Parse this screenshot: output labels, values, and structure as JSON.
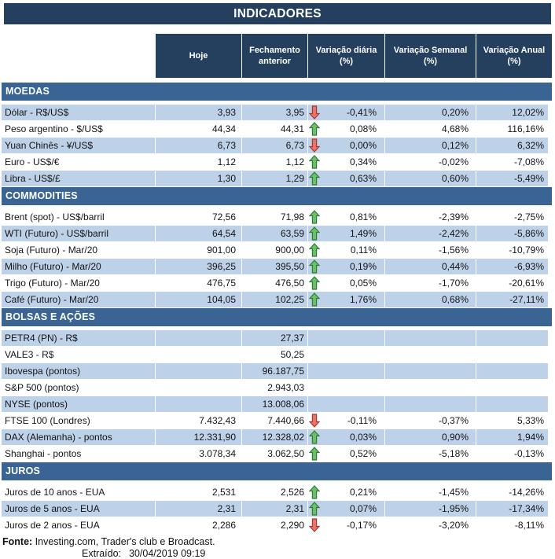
{
  "title": "INDICADORES",
  "columns": [
    "Hoje",
    "Fechamento anterior",
    "Variação diária (%)",
    "Variação Semanal (%)",
    "Variação Anual (%)"
  ],
  "colors": {
    "header_dark": "#24405E",
    "section_blue": "#3A6494",
    "row_shaded": "#BDD1E8",
    "arrow_up_fill": "#6CBE6C",
    "arrow_up_stroke": "#2F7D31",
    "arrow_down_fill": "#E8746B",
    "arrow_down_stroke": "#A83830"
  },
  "sections": [
    {
      "name": "MOEDAS",
      "rows": [
        {
          "label": "Dólar - R$/US$",
          "hoje": "3,93",
          "fechamento": "3,95",
          "arrow": "down",
          "var_diaria": "-0,41%",
          "var_semanal": "0,20%",
          "var_anual": "12,02%",
          "shaded": true
        },
        {
          "label": "Peso argentino - $/US$",
          "hoje": "44,34",
          "fechamento": "44,31",
          "arrow": "up",
          "var_diaria": "0,08%",
          "var_semanal": "4,68%",
          "var_anual": "116,16%",
          "shaded": false
        },
        {
          "label": "Yuan Chinês - ¥/US$",
          "hoje": "6,73",
          "fechamento": "6,73",
          "arrow": "down",
          "var_diaria": "0,00%",
          "var_semanal": "0,12%",
          "var_anual": "6,32%",
          "shaded": true
        },
        {
          "label": "Euro - US$/€",
          "hoje": "1,12",
          "fechamento": "1,12",
          "arrow": "up",
          "var_diaria": "0,34%",
          "var_semanal": "-0,02%",
          "var_anual": "-7,08%",
          "shaded": false
        },
        {
          "label": "Libra - US$/£",
          "hoje": "1,30",
          "fechamento": "1,29",
          "arrow": "up",
          "var_diaria": "0,63%",
          "var_semanal": "0,60%",
          "var_anual": "-5,49%",
          "shaded": true
        }
      ]
    },
    {
      "name": "COMMODITIES",
      "rows": [
        {
          "label": "Brent (spot) - US$/barril",
          "hoje": "72,56",
          "fechamento": "71,98",
          "arrow": "up",
          "var_diaria": "0,81%",
          "var_semanal": "-2,39%",
          "var_anual": "-2,75%",
          "shaded": false
        },
        {
          "label": "WTI (Futuro) - US$/barril",
          "hoje": "64,54",
          "fechamento": "63,59",
          "arrow": "up",
          "var_diaria": "1,49%",
          "var_semanal": "-2,42%",
          "var_anual": "-5,86%",
          "shaded": true
        },
        {
          "label": "Soja (Futuro) - Mar/20",
          "hoje": "901,00",
          "fechamento": "900,00",
          "arrow": "up",
          "var_diaria": "0,11%",
          "var_semanal": "-1,56%",
          "var_anual": "-10,79%",
          "shaded": false
        },
        {
          "label": "Milho (Futuro) - Mar/20",
          "hoje": "396,25",
          "fechamento": "395,50",
          "arrow": "up",
          "var_diaria": "0,19%",
          "var_semanal": "0,44%",
          "var_anual": "-6,93%",
          "shaded": true
        },
        {
          "label": "Trigo (Futuro) - Mar/20",
          "hoje": "476,75",
          "fechamento": "476,50",
          "arrow": "up",
          "var_diaria": "0,05%",
          "var_semanal": "-1,70%",
          "var_anual": "-20,61%",
          "shaded": false
        },
        {
          "label": "Café (Futuro) - Mar/20",
          "hoje": "104,05",
          "fechamento": "102,25",
          "arrow": "up",
          "var_diaria": "1,76%",
          "var_semanal": "0,68%",
          "var_anual": "-27,11%",
          "shaded": true
        }
      ]
    },
    {
      "name": "BOLSAS E AÇÕES",
      "rows": [
        {
          "label": "PETR4 (PN) - R$",
          "hoje": "",
          "fechamento": "27,37",
          "arrow": null,
          "var_diaria": "",
          "var_semanal": "",
          "var_anual": "",
          "shaded": true
        },
        {
          "label": "VALE3 - R$",
          "hoje": "",
          "fechamento": "50,25",
          "arrow": null,
          "var_diaria": "",
          "var_semanal": "",
          "var_anual": "",
          "shaded": false
        },
        {
          "label": "Ibovespa (pontos)",
          "hoje": "",
          "fechamento": "96.187,75",
          "arrow": null,
          "var_diaria": "",
          "var_semanal": "",
          "var_anual": "",
          "shaded": true
        },
        {
          "label": "S&P 500 (pontos)",
          "hoje": "",
          "fechamento": "2.943,03",
          "arrow": null,
          "var_diaria": "",
          "var_semanal": "",
          "var_anual": "",
          "shaded": false
        },
        {
          "label": "NYSE (pontos)",
          "hoje": "",
          "fechamento": "13.008,06",
          "arrow": null,
          "var_diaria": "",
          "var_semanal": "",
          "var_anual": "",
          "shaded": true
        },
        {
          "label": "FTSE 100 (Londres)",
          "hoje": "7.432,43",
          "fechamento": "7.440,66",
          "arrow": "down",
          "var_diaria": "-0,11%",
          "var_semanal": "-0,37%",
          "var_anual": "5,33%",
          "shaded": false
        },
        {
          "label": "DAX (Alemanha) - pontos",
          "hoje": "12.331,90",
          "fechamento": "12.328,02",
          "arrow": "up",
          "var_diaria": "0,03%",
          "var_semanal": "0,90%",
          "var_anual": "1,94%",
          "shaded": true
        },
        {
          "label": "Shanghai - pontos",
          "hoje": "3.078,34",
          "fechamento": "3.062,50",
          "arrow": "up",
          "var_diaria": "0,52%",
          "var_semanal": "-5,18%",
          "var_anual": "-0,13%",
          "shaded": false
        }
      ]
    },
    {
      "name": "JUROS",
      "rows": [
        {
          "label": "Juros de 10 anos - EUA",
          "hoje": "2,531",
          "fechamento": "2,526",
          "arrow": "up",
          "var_diaria": "0,21%",
          "var_semanal": "-1,45%",
          "var_anual": "-14,26%",
          "shaded": false
        },
        {
          "label": "Juros de 5 anos - EUA",
          "hoje": "2,31",
          "fechamento": "2,31",
          "arrow": "up",
          "var_diaria": "0,07%",
          "var_semanal": "-1,95%",
          "var_anual": "-17,34%",
          "shaded": true
        },
        {
          "label": "Juros de 2 anos - EUA",
          "hoje": "2,286",
          "fechamento": "2,290",
          "arrow": "down",
          "var_diaria": "-0,17%",
          "var_semanal": "-3,20%",
          "var_anual": "-8,11%",
          "shaded": false
        }
      ]
    }
  ],
  "footer": {
    "source_label": "Fonte:",
    "source_text": " Investing.com, Trader's club e Broadcast.",
    "extracted_label": "Extraído:",
    "extracted_value": "30/04/2019 09:19"
  }
}
